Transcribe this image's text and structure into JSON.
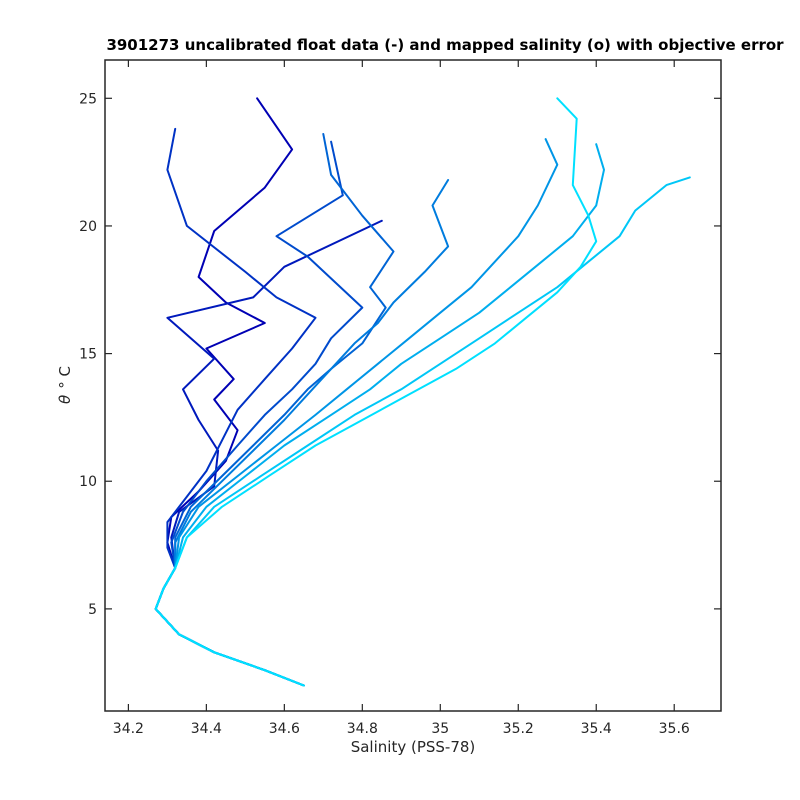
{
  "chart_data": {
    "type": "line",
    "title": "3901273 uncalibrated float data (-) and mapped salinity (o) with objective error",
    "xlabel": "Salinity (PSS-78)",
    "ylabel_symbol": "θ",
    "ylabel_unit": "° C",
    "xlim": [
      34.14,
      35.72
    ],
    "ylim": [
      1,
      26.5
    ],
    "xticks": [
      {
        "value": 34.2,
        "label": "34.2"
      },
      {
        "value": 34.4,
        "label": "34.4"
      },
      {
        "value": 34.6,
        "label": "34.6"
      },
      {
        "value": 34.8,
        "label": "34.8"
      },
      {
        "value": 35.0,
        "label": "35"
      },
      {
        "value": 35.2,
        "label": "35.2"
      },
      {
        "value": 35.4,
        "label": "35.4"
      },
      {
        "value": 35.6,
        "label": "35.6"
      }
    ],
    "yticks": [
      {
        "value": 5,
        "label": "5"
      },
      {
        "value": 10,
        "label": "10"
      },
      {
        "value": 15,
        "label": "15"
      },
      {
        "value": 20,
        "label": "20"
      },
      {
        "value": 25,
        "label": "25"
      }
    ],
    "grid": false,
    "legend": "none",
    "color_start": "#0000b4",
    "color_end": "#00e0ff",
    "series": [
      {
        "values": [
          [
            34.65,
            2.0
          ],
          [
            34.55,
            2.6
          ],
          [
            34.42,
            3.3
          ],
          [
            34.33,
            4.0
          ],
          [
            34.27,
            5.0
          ],
          [
            34.29,
            5.8
          ],
          [
            34.32,
            6.6
          ],
          [
            34.3,
            7.6
          ],
          [
            34.31,
            8.6
          ],
          [
            34.38,
            9.6
          ],
          [
            34.45,
            10.8
          ],
          [
            34.48,
            12.0
          ],
          [
            34.42,
            13.2
          ],
          [
            34.47,
            14.0
          ],
          [
            34.4,
            15.2
          ],
          [
            34.55,
            16.2
          ],
          [
            34.45,
            17.0
          ],
          [
            34.38,
            18.0
          ],
          [
            34.42,
            19.8
          ],
          [
            34.55,
            21.5
          ],
          [
            34.62,
            23.0
          ],
          [
            34.53,
            25.0
          ]
        ]
      },
      {
        "values": [
          [
            34.65,
            2.0
          ],
          [
            34.55,
            2.6
          ],
          [
            34.42,
            3.3
          ],
          [
            34.33,
            4.0
          ],
          [
            34.27,
            5.0
          ],
          [
            34.29,
            5.8
          ],
          [
            34.32,
            6.6
          ],
          [
            34.31,
            7.8
          ],
          [
            34.33,
            8.8
          ],
          [
            34.42,
            9.8
          ],
          [
            34.43,
            11.2
          ],
          [
            34.38,
            12.4
          ],
          [
            34.34,
            13.6
          ],
          [
            34.42,
            14.8
          ],
          [
            34.3,
            16.4
          ],
          [
            34.52,
            17.2
          ],
          [
            34.6,
            18.4
          ],
          [
            34.85,
            20.2
          ]
        ]
      },
      {
        "values": [
          [
            34.65,
            2.0
          ],
          [
            34.55,
            2.6
          ],
          [
            34.42,
            3.3
          ],
          [
            34.33,
            4.0
          ],
          [
            34.27,
            5.0
          ],
          [
            34.29,
            5.8
          ],
          [
            34.32,
            6.6
          ],
          [
            34.3,
            7.4
          ],
          [
            34.3,
            8.4
          ],
          [
            34.35,
            9.4
          ],
          [
            34.4,
            10.4
          ],
          [
            34.44,
            11.6
          ],
          [
            34.48,
            12.8
          ],
          [
            34.55,
            14.0
          ],
          [
            34.62,
            15.2
          ],
          [
            34.68,
            16.4
          ],
          [
            34.58,
            17.2
          ],
          [
            34.5,
            18.2
          ],
          [
            34.35,
            20.0
          ],
          [
            34.3,
            22.2
          ],
          [
            34.32,
            23.8
          ]
        ]
      },
      {
        "values": [
          [
            34.65,
            2.0
          ],
          [
            34.55,
            2.6
          ],
          [
            34.42,
            3.3
          ],
          [
            34.33,
            4.0
          ],
          [
            34.27,
            5.0
          ],
          [
            34.29,
            5.8
          ],
          [
            34.32,
            6.6
          ],
          [
            34.31,
            7.6
          ],
          [
            34.34,
            8.8
          ],
          [
            34.4,
            10.0
          ],
          [
            34.48,
            11.4
          ],
          [
            34.55,
            12.6
          ],
          [
            34.62,
            13.6
          ],
          [
            34.68,
            14.6
          ],
          [
            34.72,
            15.6
          ],
          [
            34.8,
            16.8
          ],
          [
            34.66,
            18.8
          ],
          [
            34.58,
            19.6
          ],
          [
            34.75,
            21.2
          ],
          [
            34.72,
            23.3
          ]
        ]
      },
      {
        "values": [
          [
            34.65,
            2.0
          ],
          [
            34.55,
            2.6
          ],
          [
            34.42,
            3.3
          ],
          [
            34.33,
            4.0
          ],
          [
            34.27,
            5.0
          ],
          [
            34.29,
            5.8
          ],
          [
            34.32,
            6.6
          ],
          [
            34.32,
            7.8
          ],
          [
            34.36,
            9.0
          ],
          [
            34.44,
            10.2
          ],
          [
            34.52,
            11.4
          ],
          [
            34.6,
            12.6
          ],
          [
            34.66,
            13.6
          ],
          [
            34.72,
            14.4
          ],
          [
            34.8,
            15.4
          ],
          [
            34.86,
            16.8
          ],
          [
            34.82,
            17.6
          ],
          [
            34.88,
            19.0
          ],
          [
            34.8,
            20.4
          ],
          [
            34.72,
            22.0
          ],
          [
            34.7,
            23.6
          ]
        ]
      },
      {
        "values": [
          [
            34.65,
            2.0
          ],
          [
            34.55,
            2.6
          ],
          [
            34.42,
            3.3
          ],
          [
            34.33,
            4.0
          ],
          [
            34.27,
            5.0
          ],
          [
            34.29,
            5.8
          ],
          [
            34.32,
            6.6
          ],
          [
            34.32,
            7.6
          ],
          [
            34.36,
            8.8
          ],
          [
            34.44,
            10.0
          ],
          [
            34.52,
            11.2
          ],
          [
            34.6,
            12.4
          ],
          [
            34.66,
            13.4
          ],
          [
            34.72,
            14.4
          ],
          [
            34.78,
            15.4
          ],
          [
            34.84,
            16.2
          ],
          [
            34.88,
            17.0
          ],
          [
            34.96,
            18.2
          ],
          [
            35.02,
            19.2
          ],
          [
            34.98,
            20.8
          ],
          [
            35.02,
            21.8
          ]
        ]
      },
      {
        "values": [
          [
            34.65,
            2.0
          ],
          [
            34.55,
            2.6
          ],
          [
            34.42,
            3.3
          ],
          [
            34.33,
            4.0
          ],
          [
            34.27,
            5.0
          ],
          [
            34.29,
            5.8
          ],
          [
            34.32,
            6.6
          ],
          [
            34.33,
            7.8
          ],
          [
            34.38,
            9.0
          ],
          [
            34.48,
            10.2
          ],
          [
            34.58,
            11.4
          ],
          [
            34.68,
            12.6
          ],
          [
            34.76,
            13.6
          ],
          [
            34.84,
            14.6
          ],
          [
            34.92,
            15.6
          ],
          [
            35.0,
            16.6
          ],
          [
            35.08,
            17.6
          ],
          [
            35.14,
            18.6
          ],
          [
            35.2,
            19.6
          ],
          [
            35.25,
            20.8
          ],
          [
            35.3,
            22.4
          ],
          [
            35.27,
            23.4
          ]
        ]
      },
      {
        "values": [
          [
            34.65,
            2.0
          ],
          [
            34.55,
            2.6
          ],
          [
            34.42,
            3.3
          ],
          [
            34.33,
            4.0
          ],
          [
            34.27,
            5.0
          ],
          [
            34.29,
            5.8
          ],
          [
            34.32,
            6.6
          ],
          [
            34.34,
            7.8
          ],
          [
            34.4,
            9.0
          ],
          [
            34.5,
            10.2
          ],
          [
            34.6,
            11.4
          ],
          [
            34.72,
            12.6
          ],
          [
            34.82,
            13.6
          ],
          [
            34.9,
            14.6
          ],
          [
            35.0,
            15.6
          ],
          [
            35.1,
            16.6
          ],
          [
            35.18,
            17.6
          ],
          [
            35.26,
            18.6
          ],
          [
            35.34,
            19.6
          ],
          [
            35.4,
            20.8
          ],
          [
            35.42,
            22.2
          ],
          [
            35.4,
            23.2
          ]
        ]
      },
      {
        "values": [
          [
            34.65,
            2.0
          ],
          [
            34.55,
            2.6
          ],
          [
            34.42,
            3.3
          ],
          [
            34.33,
            4.0
          ],
          [
            34.27,
            5.0
          ],
          [
            34.29,
            5.8
          ],
          [
            34.32,
            6.6
          ],
          [
            34.35,
            7.8
          ],
          [
            34.42,
            9.0
          ],
          [
            34.54,
            10.2
          ],
          [
            34.66,
            11.4
          ],
          [
            34.78,
            12.6
          ],
          [
            34.9,
            13.6
          ],
          [
            35.0,
            14.6
          ],
          [
            35.1,
            15.6
          ],
          [
            35.2,
            16.6
          ],
          [
            35.3,
            17.6
          ],
          [
            35.38,
            18.6
          ],
          [
            35.46,
            19.6
          ],
          [
            35.5,
            20.6
          ],
          [
            35.58,
            21.6
          ],
          [
            35.64,
            21.9
          ]
        ]
      },
      {
        "values": [
          [
            34.65,
            2.0
          ],
          [
            34.55,
            2.6
          ],
          [
            34.42,
            3.3
          ],
          [
            34.33,
            4.0
          ],
          [
            34.27,
            5.0
          ],
          [
            34.29,
            5.8
          ],
          [
            34.32,
            6.6
          ],
          [
            34.35,
            7.8
          ],
          [
            34.44,
            9.0
          ],
          [
            34.56,
            10.2
          ],
          [
            34.68,
            11.4
          ],
          [
            34.8,
            12.4
          ],
          [
            34.92,
            13.4
          ],
          [
            35.04,
            14.4
          ],
          [
            35.14,
            15.4
          ],
          [
            35.22,
            16.4
          ],
          [
            35.3,
            17.4
          ],
          [
            35.36,
            18.4
          ],
          [
            35.4,
            19.4
          ],
          [
            35.38,
            20.4
          ],
          [
            35.34,
            21.6
          ],
          [
            35.35,
            24.2
          ],
          [
            35.3,
            25.0
          ]
        ]
      }
    ]
  }
}
